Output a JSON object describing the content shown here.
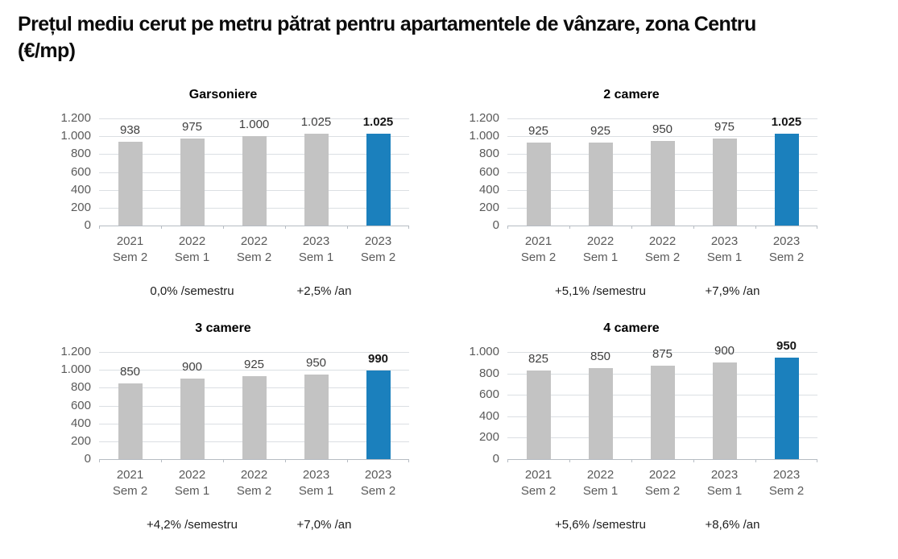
{
  "page": {
    "title_line1": "Prețul mediu cerut pe metru pătrat pentru apartamentele de vânzare, zona Centru",
    "title_line2": "(€/mp)"
  },
  "colors": {
    "bar_default": "#c3c3c3",
    "bar_highlight": "#1b80bd",
    "gridline": "#dbdfe3",
    "axis_line": "#b6bcc3",
    "tick_label": "#5a5a5a",
    "value_label": "#3f3f3f",
    "value_label_highlight": "#161616",
    "annotation_text": "#1d1d1d",
    "title_text": "#0b0b0b"
  },
  "chart_data": [
    {
      "type": "bar",
      "title": "Garsoniere",
      "categories": [
        {
          "line1": "2021",
          "line2": "Sem 2"
        },
        {
          "line1": "2022",
          "line2": "Sem 1"
        },
        {
          "line1": "2022",
          "line2": "Sem 2"
        },
        {
          "line1": "2023",
          "line2": "Sem 1"
        },
        {
          "line1": "2023",
          "line2": "Sem 2"
        }
      ],
      "values": [
        938,
        975,
        1000,
        1025,
        1025
      ],
      "value_labels": [
        "938",
        "975",
        "1.000",
        "1.025",
        "1.025"
      ],
      "highlight_index": 4,
      "ymax": 1200,
      "ytick_step": 200,
      "yticks": [
        "0",
        "200",
        "400",
        "600",
        "800",
        "1.000",
        "1.200"
      ],
      "grid": true,
      "legend": "none",
      "annotations": {
        "semester": "0,0% /semestru",
        "annual": "+2,5% /an"
      }
    },
    {
      "type": "bar",
      "title": "2 camere",
      "categories": [
        {
          "line1": "2021",
          "line2": "Sem 2"
        },
        {
          "line1": "2022",
          "line2": "Sem 1"
        },
        {
          "line1": "2022",
          "line2": "Sem 2"
        },
        {
          "line1": "2023",
          "line2": "Sem 1"
        },
        {
          "line1": "2023",
          "line2": "Sem 2"
        }
      ],
      "values": [
        925,
        925,
        950,
        975,
        1025
      ],
      "value_labels": [
        "925",
        "925",
        "950",
        "975",
        "1.025"
      ],
      "highlight_index": 4,
      "ymax": 1200,
      "ytick_step": 200,
      "yticks": [
        "0",
        "200",
        "400",
        "600",
        "800",
        "1.000",
        "1.200"
      ],
      "grid": true,
      "legend": "none",
      "annotations": {
        "semester": "+5,1% /semestru",
        "annual": "+7,9% /an"
      }
    },
    {
      "type": "bar",
      "title": "3 camere",
      "categories": [
        {
          "line1": "2021",
          "line2": "Sem 2"
        },
        {
          "line1": "2022",
          "line2": "Sem 1"
        },
        {
          "line1": "2022",
          "line2": "Sem 2"
        },
        {
          "line1": "2023",
          "line2": "Sem 1"
        },
        {
          "line1": "2023",
          "line2": "Sem 2"
        }
      ],
      "values": [
        850,
        900,
        925,
        950,
        990
      ],
      "value_labels": [
        "850",
        "900",
        "925",
        "950",
        "990"
      ],
      "highlight_index": 4,
      "ymax": 1200,
      "ytick_step": 200,
      "yticks": [
        "0",
        "200",
        "400",
        "600",
        "800",
        "1.000",
        "1.200"
      ],
      "grid": true,
      "legend": "none",
      "annotations": {
        "semester": "+4,2% /semestru",
        "annual": "+7,0% /an"
      }
    },
    {
      "type": "bar",
      "title": "4 camere",
      "categories": [
        {
          "line1": "2021",
          "line2": "Sem 2"
        },
        {
          "line1": "2022",
          "line2": "Sem 1"
        },
        {
          "line1": "2022",
          "line2": "Sem 2"
        },
        {
          "line1": "2023",
          "line2": "Sem 1"
        },
        {
          "line1": "2023",
          "line2": "Sem 2"
        }
      ],
      "values": [
        825,
        850,
        875,
        900,
        950
      ],
      "value_labels": [
        "825",
        "850",
        "875",
        "900",
        "950"
      ],
      "highlight_index": 4,
      "ymax": 1000,
      "ytick_step": 200,
      "yticks": [
        "0",
        "200",
        "400",
        "600",
        "800",
        "1.000"
      ],
      "grid": true,
      "legend": "none",
      "annotations": {
        "semester": "+5,6% /semestru",
        "annual": "+8,6% /an"
      }
    }
  ]
}
